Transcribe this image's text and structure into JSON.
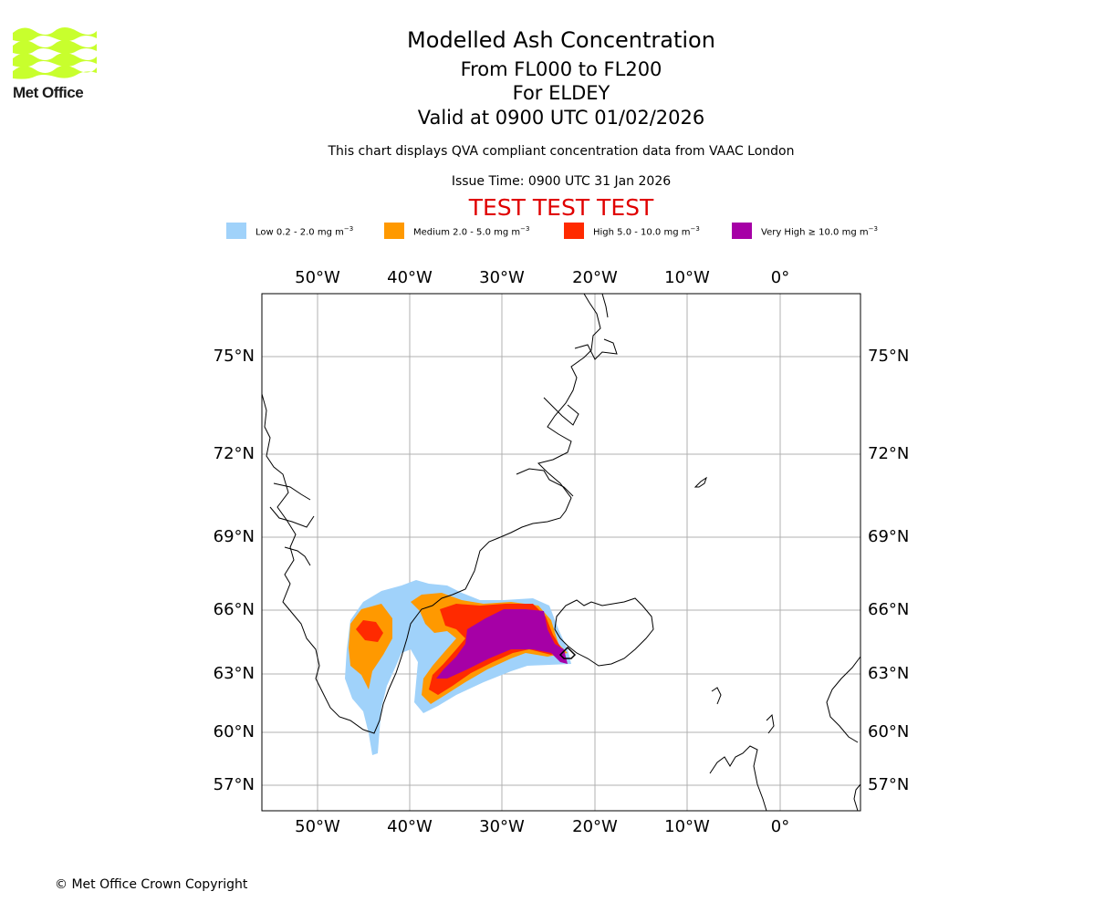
{
  "logo": {
    "text": "Met Office",
    "color": "#c8ff2d"
  },
  "title": {
    "main": "Modelled Ash Concentration",
    "levels": "From FL000 to FL200",
    "volcano": "For ELDEY",
    "valid": "Valid at 0900 UTC 01/02/2026"
  },
  "subtitle": "This chart displays QVA compliant concentration data from VAAC London",
  "issue_time": "Issue Time: 0900 UTC 31 Jan 2026",
  "test_banner": "TEST TEST TEST",
  "legend": [
    {
      "label": "Low 0.2 - 2.0 mg m",
      "exp": "−3",
      "color": "#a0d2fa"
    },
    {
      "label": "Medium 2.0 - 5.0 mg m",
      "exp": "−3",
      "color": "#ff9900"
    },
    {
      "label": "High 5.0 - 10.0 mg m",
      "exp": "−3",
      "color": "#ff2a00"
    },
    {
      "label": "Very High  ≥  10.0 mg m",
      "exp": "−3",
      "color": "#a600a6"
    }
  ],
  "map": {
    "lon_labels": [
      "50°W",
      "40°W",
      "30°W",
      "20°W",
      "10°W",
      "0°"
    ],
    "lat_labels": [
      "75°N",
      "72°N",
      "69°N",
      "66°N",
      "63°N",
      "60°N",
      "57°N"
    ]
  },
  "copyright": "© Met Office Crown Copyright"
}
